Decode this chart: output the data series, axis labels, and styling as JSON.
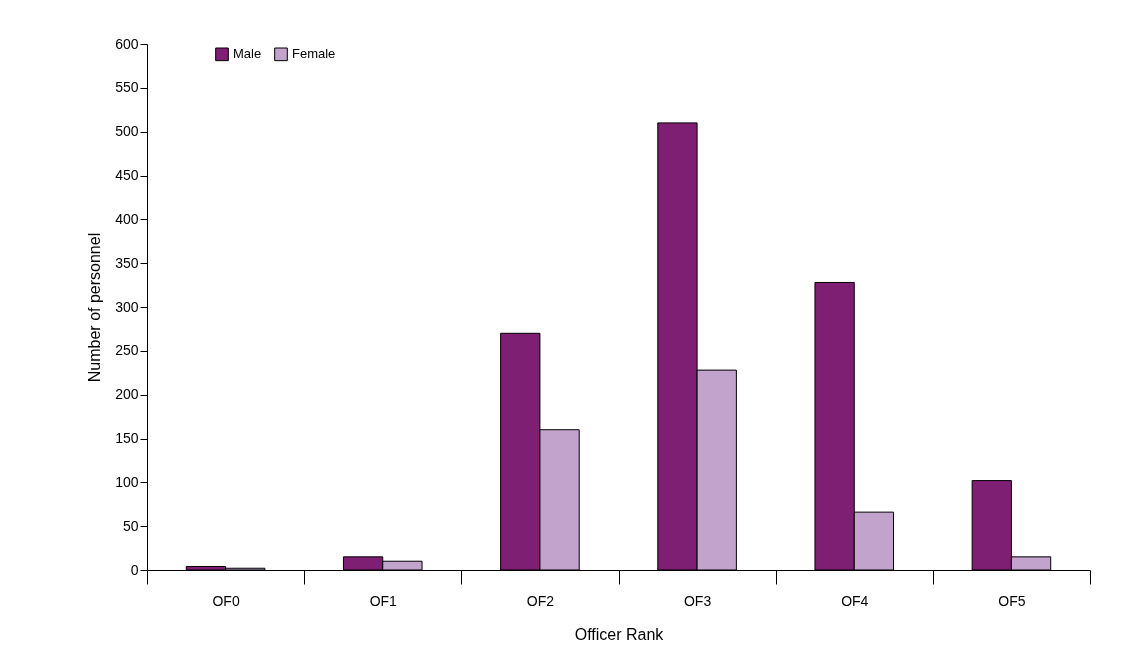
{
  "chart_data": {
    "type": "bar",
    "xlabel": "Officer Rank",
    "ylabel": "Number of personnel",
    "categories": [
      "OF0",
      "OF1",
      "OF2",
      "OF3",
      "OF4",
      "OF5"
    ],
    "series": [
      {
        "name": "Male",
        "color": "#7f1f73",
        "values": [
          4,
          15,
          270,
          510,
          328,
          102
        ]
      },
      {
        "name": "Female",
        "color": "#c2a3cb",
        "values": [
          2,
          10,
          160,
          228,
          66,
          15
        ]
      }
    ],
    "ylim": [
      0,
      600
    ],
    "yticks": [
      0,
      50,
      100,
      150,
      200,
      250,
      300,
      350,
      400,
      450,
      500,
      550,
      600
    ],
    "grid": false,
    "legend": "top left"
  }
}
